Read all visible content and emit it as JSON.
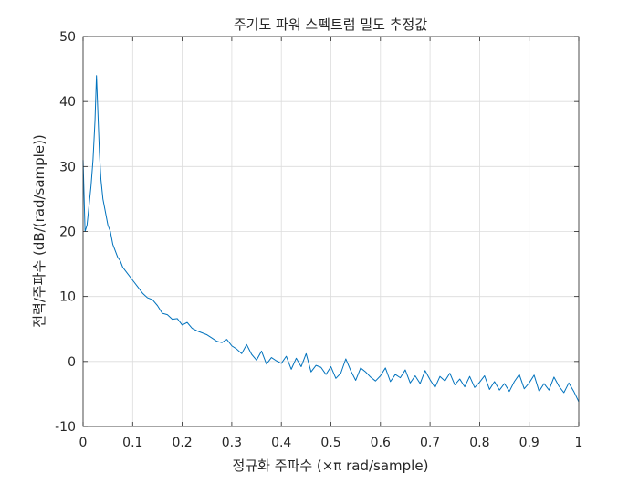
{
  "chart_data": {
    "type": "line",
    "title": "주기도 파워 스펙트럼 밀도 추정값",
    "xlabel": "정규화 주파수  (×π rad/sample)",
    "ylabel": "전력/주파수 (dB/(rad/sample))",
    "xlim": [
      0,
      1
    ],
    "ylim": [
      -10,
      50
    ],
    "xticks": [
      0,
      0.1,
      0.2,
      0.3,
      0.4,
      0.5,
      0.6,
      0.7,
      0.8,
      0.9,
      1
    ],
    "xtick_labels": [
      "0",
      "0.1",
      "0.2",
      "0.3",
      "0.4",
      "0.5",
      "0.6",
      "0.7",
      "0.8",
      "0.9",
      "1"
    ],
    "yticks": [
      -10,
      0,
      10,
      20,
      30,
      40,
      50
    ],
    "ytick_labels": [
      "-10",
      "0",
      "10",
      "20",
      "30",
      "40",
      "50"
    ],
    "grid": true,
    "line_color": "#0072BD",
    "series": [
      {
        "x": [
          0,
          0.004,
          0.008,
          0.012,
          0.016,
          0.02,
          0.024,
          0.027,
          0.03,
          0.033,
          0.036,
          0.04,
          0.045,
          0.05,
          0.055,
          0.06,
          0.065,
          0.07,
          0.075,
          0.08,
          0.09,
          0.1,
          0.11,
          0.12,
          0.13,
          0.14,
          0.15,
          0.16,
          0.17,
          0.18,
          0.19,
          0.2,
          0.21,
          0.22,
          0.23,
          0.24,
          0.25,
          0.26,
          0.27,
          0.28,
          0.29,
          0.3,
          0.31,
          0.32,
          0.33,
          0.34,
          0.35,
          0.36,
          0.37,
          0.38,
          0.39,
          0.4,
          0.41,
          0.42,
          0.43,
          0.44,
          0.45,
          0.46,
          0.47,
          0.48,
          0.49,
          0.5,
          0.51,
          0.52,
          0.53,
          0.54,
          0.55,
          0.56,
          0.57,
          0.58,
          0.59,
          0.6,
          0.61,
          0.62,
          0.63,
          0.64,
          0.65,
          0.66,
          0.67,
          0.68,
          0.69,
          0.7,
          0.71,
          0.72,
          0.73,
          0.74,
          0.75,
          0.76,
          0.77,
          0.78,
          0.79,
          0.8,
          0.81,
          0.82,
          0.83,
          0.84,
          0.85,
          0.86,
          0.87,
          0.88,
          0.89,
          0.9,
          0.91,
          0.92,
          0.93,
          0.94,
          0.95,
          0.96,
          0.97,
          0.98,
          0.99,
          1.0
        ],
        "y": [
          31,
          20,
          21,
          24,
          27,
          31,
          37,
          44,
          38,
          32,
          28,
          25,
          23,
          21,
          20,
          18,
          17,
          16,
          15.5,
          14.5,
          13.5,
          12.5,
          11.5,
          10.5,
          9.8,
          9.5,
          8.6,
          7.4,
          7.2,
          6.5,
          6.6,
          5.6,
          6.0,
          5.1,
          4.7,
          4.4,
          4.1,
          3.6,
          3.1,
          2.9,
          3.4,
          2.4,
          1.9,
          1.2,
          2.6,
          1.1,
          0.2,
          1.6,
          -0.4,
          0.6,
          0.1,
          -0.3,
          0.8,
          -1.2,
          0.5,
          -0.8,
          1.2,
          -1.6,
          -0.6,
          -0.9,
          -2.0,
          -0.8,
          -2.6,
          -1.8,
          0.4,
          -1.4,
          -2.9,
          -1.0,
          -1.6,
          -2.4,
          -3.0,
          -2.2,
          -1.0,
          -3.1,
          -2.0,
          -2.5,
          -1.3,
          -3.3,
          -2.2,
          -3.4,
          -1.4,
          -2.8,
          -4.0,
          -2.3,
          -3.0,
          -1.8,
          -3.6,
          -2.7,
          -3.9,
          -2.3,
          -4.0,
          -3.2,
          -2.2,
          -4.3,
          -3.1,
          -4.4,
          -3.4,
          -4.6,
          -3.1,
          -2.0,
          -4.2,
          -3.3,
          -2.1,
          -4.6,
          -3.4,
          -4.4,
          -2.4,
          -3.8,
          -4.8,
          -3.3,
          -4.6,
          -6.2
        ]
      }
    ]
  }
}
